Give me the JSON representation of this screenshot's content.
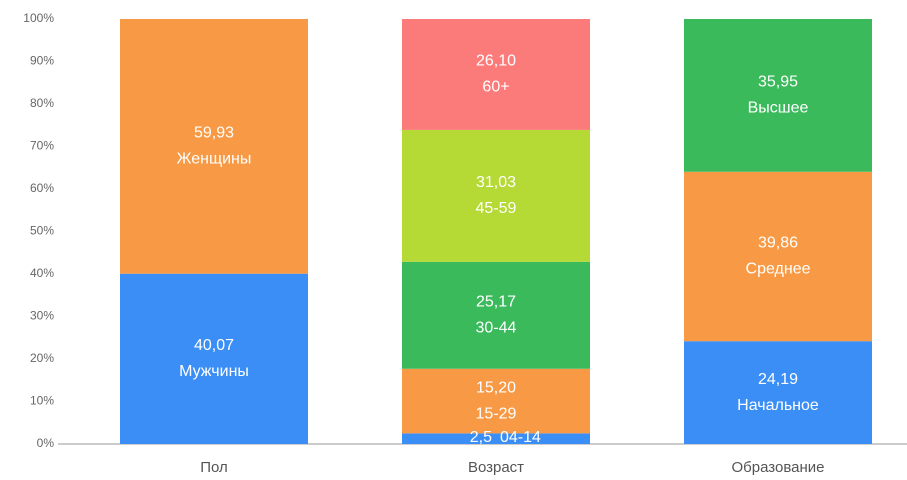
{
  "chart_data": {
    "type": "stacked_bar",
    "categories": [
      "Пол",
      "Возраст",
      "Образование"
    ],
    "stacks": [
      {
        "segments": [
          {
            "name": "Мужчины",
            "value": 40.07,
            "value_label": "40,07",
            "color": "#3a8ef6"
          },
          {
            "name": "Женщины",
            "value": 59.93,
            "value_label": "59,93",
            "color": "#f89a45"
          }
        ]
      },
      {
        "segments": [
          {
            "name": "04-14",
            "value": 2.5,
            "value_label": "2,5",
            "color": "#3a8ef6"
          },
          {
            "name": "15-29",
            "value": 15.2,
            "value_label": "15,20",
            "color": "#f89a45"
          },
          {
            "name": "30-44",
            "value": 25.17,
            "value_label": "25,17",
            "color": "#3bba5c"
          },
          {
            "name": "45-59",
            "value": 31.03,
            "value_label": "31,03",
            "color": "#b5d935"
          },
          {
            "name": "60+",
            "value": 26.1,
            "value_label": "26,10",
            "color": "#fb7b7b"
          }
        ]
      },
      {
        "segments": [
          {
            "name": "Начальное",
            "value": 24.19,
            "value_label": "24,19",
            "color": "#3a8ef6"
          },
          {
            "name": "Среднее",
            "value": 39.86,
            "value_label": "39,86",
            "color": "#f89a45"
          },
          {
            "name": "Высшее",
            "value": 35.95,
            "value_label": "35,95",
            "color": "#3bba5c"
          }
        ]
      }
    ],
    "ylim": [
      0,
      100
    ],
    "yticks": [
      {
        "value": 0,
        "label": "0%"
      },
      {
        "value": 10,
        "label": "10%"
      },
      {
        "value": 20,
        "label": "20%"
      },
      {
        "value": 30,
        "label": "30%"
      },
      {
        "value": 40,
        "label": "40%"
      },
      {
        "value": 50,
        "label": "50%"
      },
      {
        "value": 60,
        "label": "60%"
      },
      {
        "value": 70,
        "label": "70%"
      },
      {
        "value": 80,
        "label": "80%"
      },
      {
        "value": 90,
        "label": "90%"
      },
      {
        "value": 100,
        "label": "100%"
      }
    ]
  }
}
